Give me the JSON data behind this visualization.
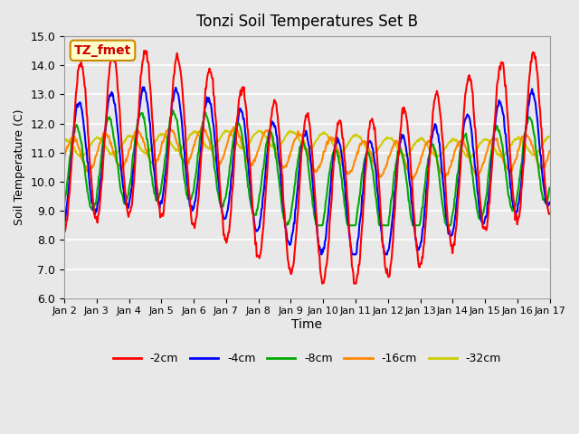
{
  "title": "Tonzi Soil Temperatures Set B",
  "xlabel": "Time",
  "ylabel": "Soil Temperature (C)",
  "ylim": [
    6.0,
    15.0
  ],
  "yticks": [
    6.0,
    7.0,
    8.0,
    9.0,
    10.0,
    11.0,
    12.0,
    13.0,
    14.0,
    15.0
  ],
  "annotation_text": "TZ_fmet",
  "annotation_color": "#CC0000",
  "annotation_bg": "#FFFFCC",
  "annotation_border": "#CC8800",
  "series_colors": [
    "#FF0000",
    "#0000FF",
    "#00AA00",
    "#FF8800",
    "#CCCC00"
  ],
  "series_labels": [
    "-2cm",
    "-4cm",
    "-8cm",
    "-16cm",
    "-32cm"
  ],
  "background_color": "#E8E8E8",
  "grid_color": "#FFFFFF",
  "xtick_labels": [
    "Jan 2",
    "Jan 3",
    "Jan 4",
    "Jan 5",
    "Jan 6",
    "Jan 7",
    "Jan 8",
    "Jan 9",
    "Jan 10",
    "Jan 11",
    "Jan 12",
    "Jan 13",
    "Jan 14",
    "Jan 15",
    "Jan 16",
    "Jan 17"
  ],
  "n_days": 15,
  "pts_per_day": 48
}
